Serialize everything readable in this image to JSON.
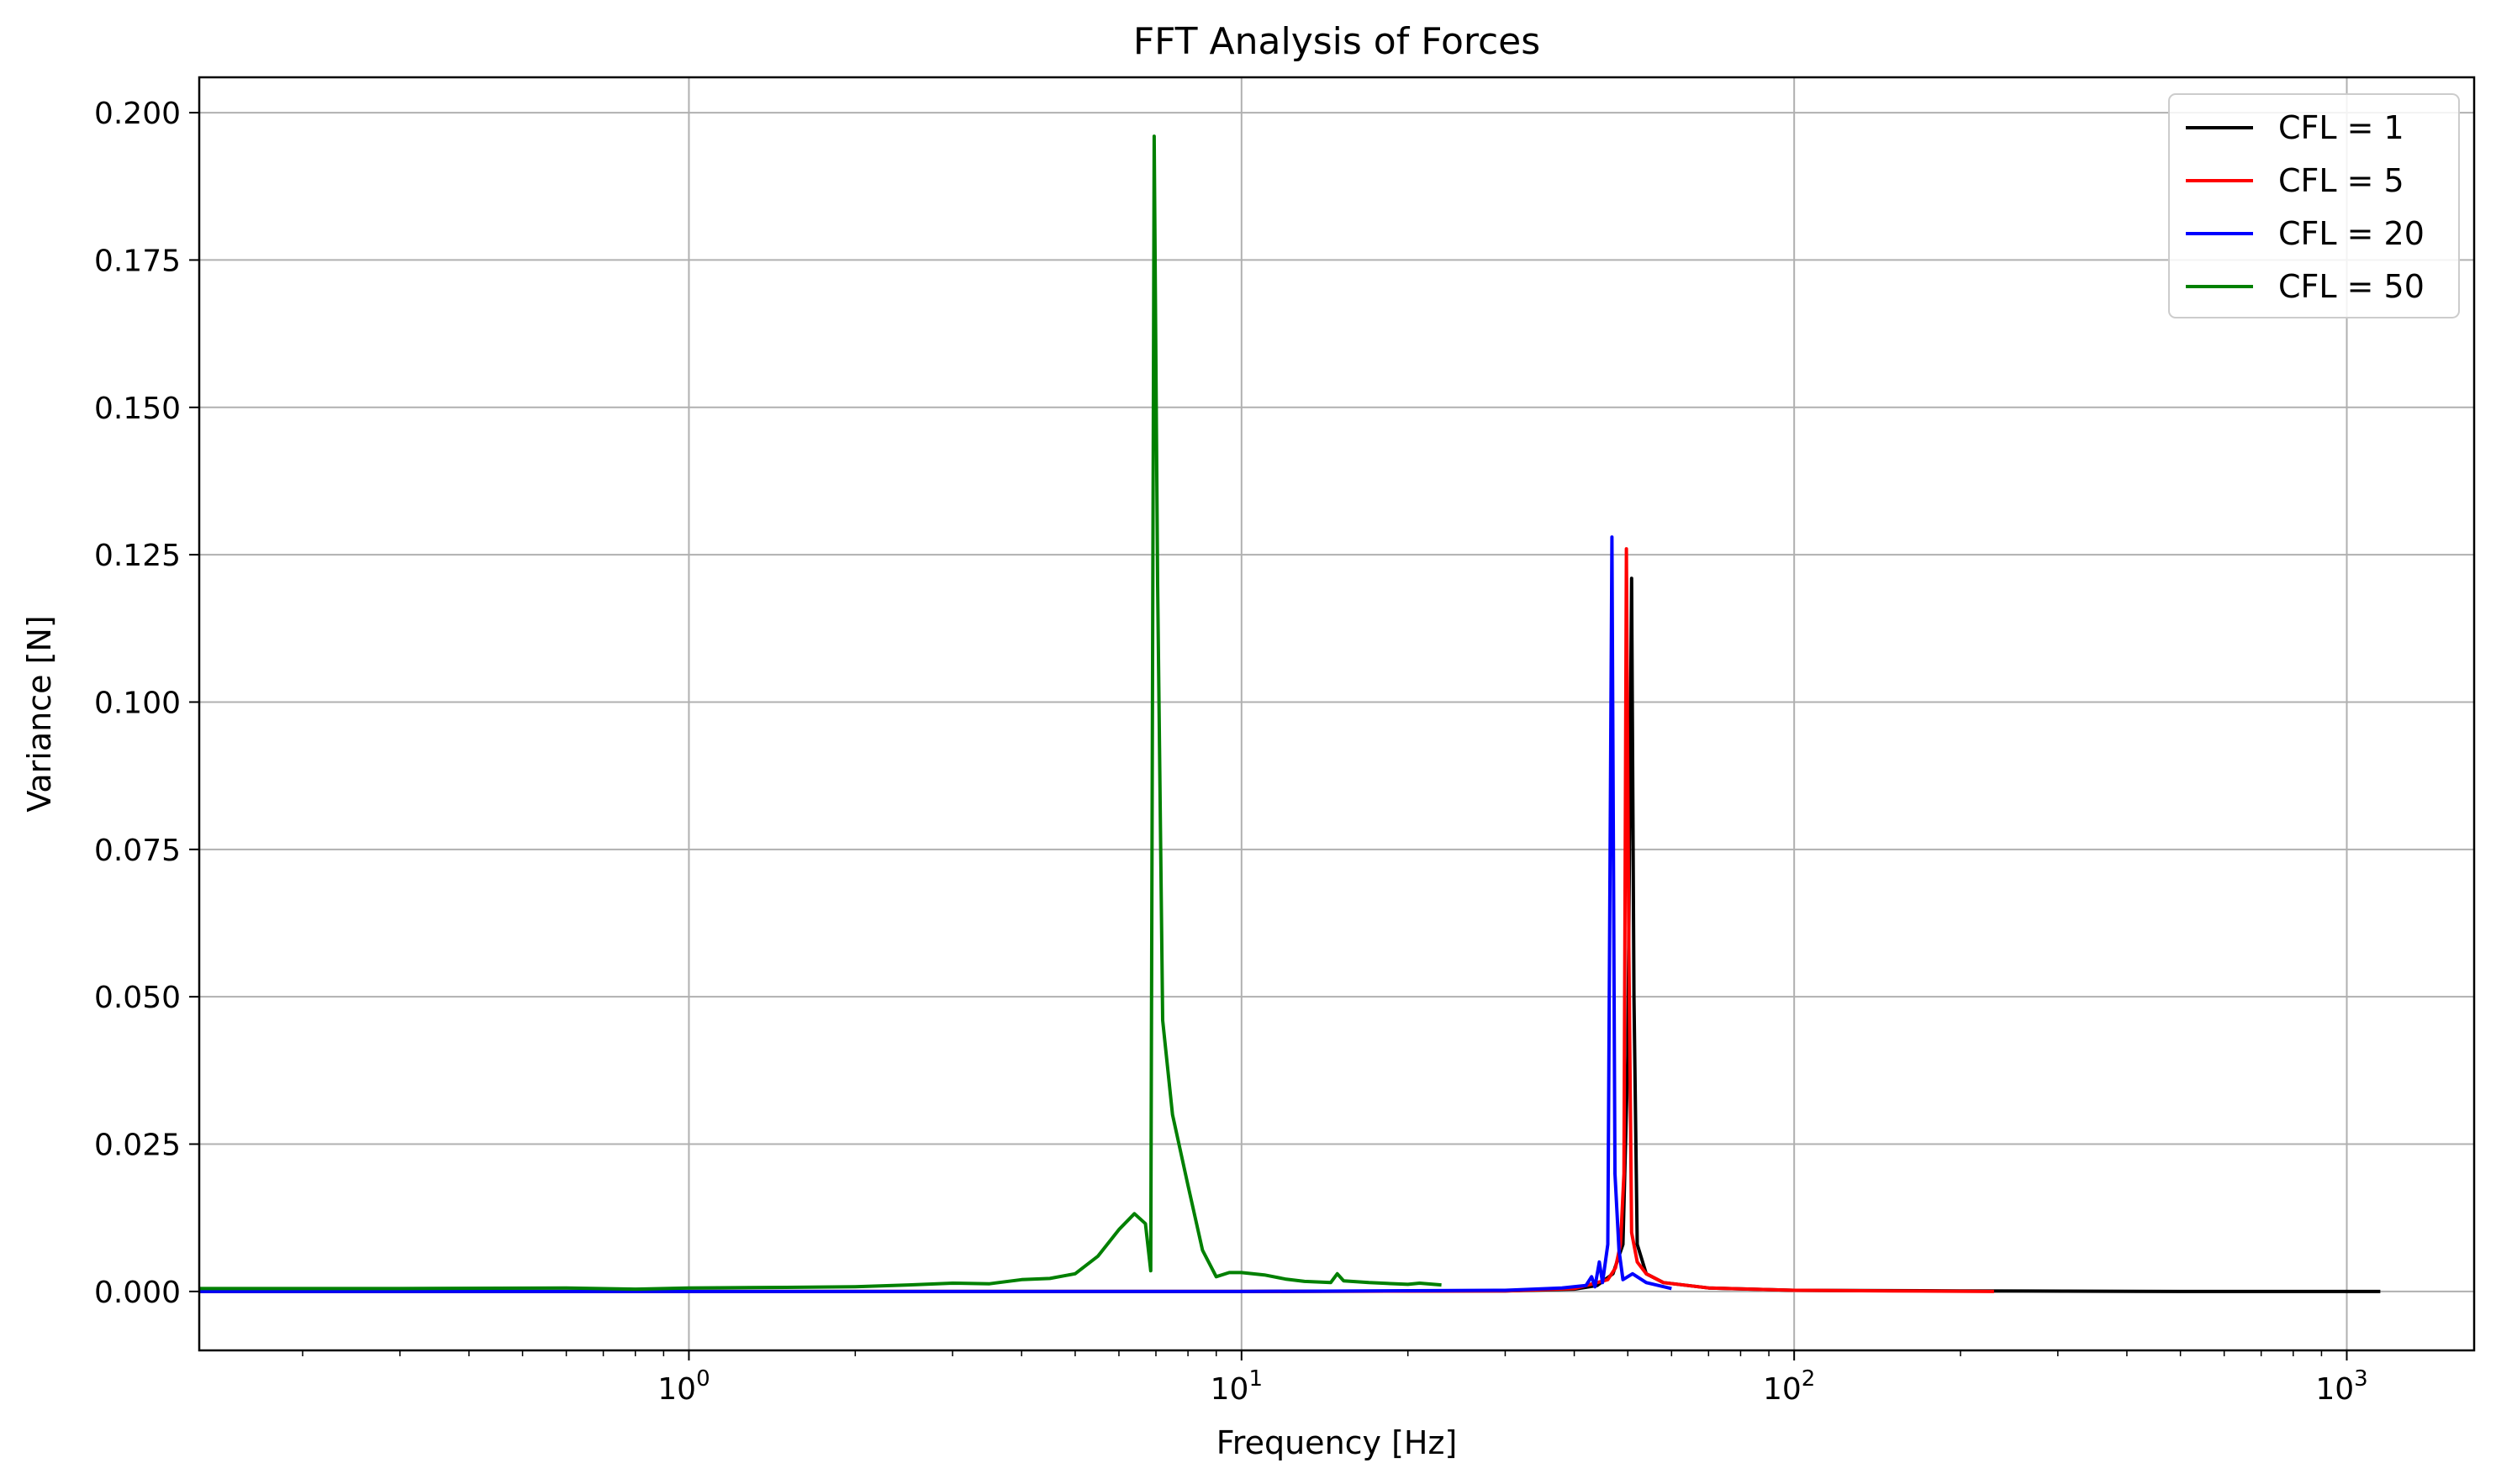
{
  "chart_data": {
    "type": "line",
    "title": "FFT Analysis of Forces",
    "xlabel": "Frequency [Hz]",
    "ylabel": "Variance [N]",
    "xscale": "log",
    "xlim": [
      0.13,
      1700
    ],
    "ylim": [
      -0.01,
      0.206
    ],
    "grid": true,
    "legend_position": "top-right",
    "x_ticks": [
      {
        "value": 1,
        "base": "10",
        "exp": "0"
      },
      {
        "value": 10,
        "base": "10",
        "exp": "1"
      },
      {
        "value": 100,
        "base": "10",
        "exp": "2"
      },
      {
        "value": 1000,
        "base": "10",
        "exp": "3"
      }
    ],
    "y_ticks": [
      {
        "value": 0.0,
        "label": "0.000"
      },
      {
        "value": 0.025,
        "label": "0.025"
      },
      {
        "value": 0.05,
        "label": "0.050"
      },
      {
        "value": 0.075,
        "label": "0.075"
      },
      {
        "value": 0.1,
        "label": "0.100"
      },
      {
        "value": 0.125,
        "label": "0.125"
      },
      {
        "value": 0.15,
        "label": "0.150"
      },
      {
        "value": 0.175,
        "label": "0.175"
      },
      {
        "value": 0.2,
        "label": "0.200"
      }
    ],
    "series": [
      {
        "name": "CFL = 1",
        "color": "#000000",
        "points": [
          [
            0.13,
            0.0
          ],
          [
            1,
            0.0
          ],
          [
            10,
            0.0
          ],
          [
            30,
            0.0001
          ],
          [
            40,
            0.0004
          ],
          [
            44,
            0.001
          ],
          [
            47,
            0.003
          ],
          [
            49,
            0.008
          ],
          [
            50,
            0.04
          ],
          [
            50.8,
            0.121
          ],
          [
            51.3,
            0.05
          ],
          [
            52,
            0.008
          ],
          [
            54,
            0.003
          ],
          [
            58,
            0.0015
          ],
          [
            70,
            0.0006
          ],
          [
            100,
            0.0002
          ],
          [
            200,
            0.0001
          ],
          [
            500,
            0.0
          ],
          [
            1150,
            0.0
          ]
        ]
      },
      {
        "name": "CFL = 5",
        "color": "#ff0000",
        "points": [
          [
            0.13,
            0.0
          ],
          [
            1,
            0.0
          ],
          [
            10,
            0.0
          ],
          [
            30,
            0.0001
          ],
          [
            40,
            0.0005
          ],
          [
            44,
            0.0015
          ],
          [
            46,
            0.002
          ],
          [
            47.5,
            0.004
          ],
          [
            48.5,
            0.008
          ],
          [
            49.2,
            0.02
          ],
          [
            49.7,
            0.126
          ],
          [
            50.2,
            0.06
          ],
          [
            50.8,
            0.01
          ],
          [
            52,
            0.005
          ],
          [
            54,
            0.003
          ],
          [
            58,
            0.0015
          ],
          [
            70,
            0.0006
          ],
          [
            100,
            0.0002
          ],
          [
            150,
            0.0001
          ],
          [
            230,
            0.0
          ]
        ]
      },
      {
        "name": "CFL = 20",
        "color": "#0000ff",
        "points": [
          [
            0.13,
            0.0
          ],
          [
            1,
            0.0
          ],
          [
            10,
            0.0
          ],
          [
            30,
            0.0002
          ],
          [
            38,
            0.0006
          ],
          [
            42,
            0.001
          ],
          [
            43,
            0.0025
          ],
          [
            43.6,
            0.0008
          ],
          [
            44.4,
            0.005
          ],
          [
            45,
            0.0015
          ],
          [
            46,
            0.008
          ],
          [
            46.8,
            0.128
          ],
          [
            47.4,
            0.02
          ],
          [
            48.2,
            0.007
          ],
          [
            49,
            0.002
          ],
          [
            51,
            0.003
          ],
          [
            54,
            0.0015
          ],
          [
            60,
            0.0005
          ]
        ]
      },
      {
        "name": "CFL = 50",
        "color": "#008000",
        "points": [
          [
            0.13,
            0.0005
          ],
          [
            0.3,
            0.0005
          ],
          [
            0.6,
            0.0006
          ],
          [
            0.8,
            0.0004
          ],
          [
            1,
            0.0006
          ],
          [
            1.5,
            0.0007
          ],
          [
            2,
            0.0008
          ],
          [
            2.5,
            0.0011
          ],
          [
            3,
            0.0014
          ],
          [
            3.5,
            0.0013
          ],
          [
            4,
            0.002
          ],
          [
            4.5,
            0.0022
          ],
          [
            5,
            0.003
          ],
          [
            5.5,
            0.006
          ],
          [
            6,
            0.0105
          ],
          [
            6.4,
            0.0132
          ],
          [
            6.7,
            0.0115
          ],
          [
            6.85,
            0.0035
          ],
          [
            6.95,
            0.196
          ],
          [
            7.05,
            0.12
          ],
          [
            7.2,
            0.046
          ],
          [
            7.5,
            0.03
          ],
          [
            8,
            0.018
          ],
          [
            8.5,
            0.007
          ],
          [
            9,
            0.0025
          ],
          [
            9.5,
            0.0032
          ],
          [
            10,
            0.0032
          ],
          [
            11,
            0.0028
          ],
          [
            12,
            0.0021
          ],
          [
            13,
            0.0017
          ],
          [
            14.5,
            0.0015
          ],
          [
            14.9,
            0.003
          ],
          [
            15.3,
            0.0018
          ],
          [
            17,
            0.0015
          ],
          [
            20,
            0.0012
          ],
          [
            21,
            0.0014
          ],
          [
            23,
            0.0011
          ]
        ]
      }
    ]
  }
}
